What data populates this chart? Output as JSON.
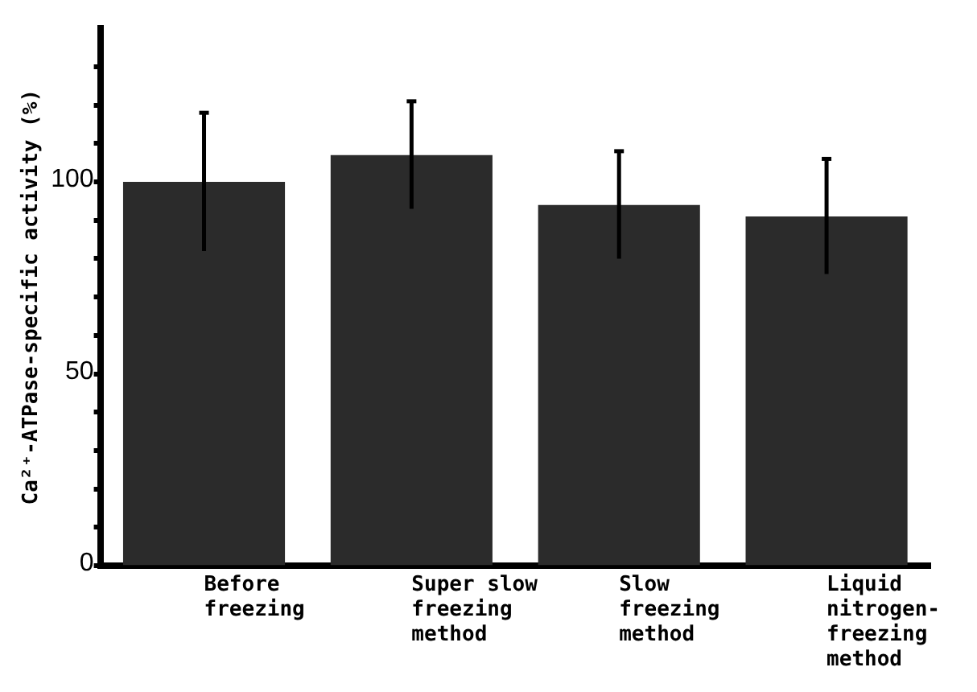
{
  "chart_data": {
    "type": "bar",
    "ylabel": "Ca²⁺-ATPase-specific activity (%)",
    "categories": [
      "Before freezing",
      "Super slow freezing method",
      "Slow freezing method",
      "Liquid nitrogen-freezing method"
    ],
    "values": [
      100,
      107,
      94,
      91
    ],
    "errors": [
      18,
      14,
      14,
      15
    ],
    "color": "#2b2b2b",
    "ylim": [
      0,
      140
    ],
    "yticks": [
      0,
      {
        "value": 10,
        "label": null
      },
      {
        "value": 20,
        "label": null
      },
      {
        "value": 30,
        "label": null
      },
      {
        "value": 40,
        "label": null
      },
      50,
      {
        "value": 60,
        "label": null
      },
      {
        "value": 70,
        "label": null
      },
      {
        "value": 80,
        "label": null
      },
      {
        "value": 90,
        "label": null
      },
      100,
      {
        "value": 110,
        "label": null
      },
      {
        "value": 120,
        "label": null
      },
      {
        "value": 130,
        "label": null
      }
    ],
    "grid": false,
    "legend": false
  }
}
